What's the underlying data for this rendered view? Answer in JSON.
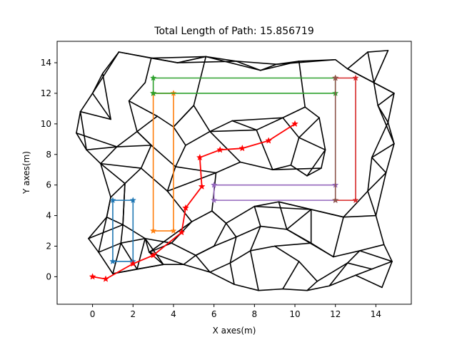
{
  "chart_data": {
    "type": "line",
    "title": "Total Length of Path: 15.856719",
    "xlabel": "X axes(m)",
    "ylabel": "Y axes(m)",
    "xlim": [
      -1.75,
      15.75
    ],
    "ylim": [
      -1.8,
      15.4
    ],
    "x_ticks": [
      0,
      2,
      4,
      6,
      8,
      10,
      12,
      14
    ],
    "y_ticks": [
      0,
      2,
      4,
      6,
      8,
      10,
      12,
      14
    ],
    "grid": false,
    "colors": {
      "network": "#000000",
      "path": "#ff0000",
      "blue": "#1f77b4",
      "orange": "#ff7f0e",
      "green": "#2ca02c",
      "red": "#d62728",
      "purple": "#9467bd",
      "brown": "#8c564b"
    },
    "obstacles": [
      {
        "name": "blue",
        "color": "#1f77b4",
        "x": [
          1,
          2,
          2,
          1,
          1
        ],
        "y": [
          1,
          1,
          5,
          5,
          1
        ]
      },
      {
        "name": "orange",
        "color": "#ff7f0e",
        "x": [
          3,
          4,
          4,
          3,
          3
        ],
        "y": [
          3,
          3,
          12,
          12,
          3
        ]
      },
      {
        "name": "green",
        "color": "#2ca02c",
        "x": [
          3,
          12,
          12,
          3,
          3
        ],
        "y": [
          12,
          12,
          13,
          13,
          12
        ]
      },
      {
        "name": "red",
        "color": "#d62728",
        "x": [
          12,
          13,
          13,
          12
        ],
        "y": [
          13,
          13,
          5,
          5
        ]
      },
      {
        "name": "purple",
        "color": "#9467bd",
        "x": [
          12,
          6,
          6,
          12
        ],
        "y": [
          5,
          5,
          6,
          6
        ]
      },
      {
        "name": "brown",
        "color": "#8c564b",
        "x": [
          12,
          12
        ],
        "y": [
          5,
          13
        ]
      }
    ],
    "path": {
      "x": [
        0,
        0.65,
        2,
        3,
        4.4,
        4.6,
        5.4,
        5.3,
        6.3,
        7.4,
        8.7,
        10
      ],
      "y": [
        0,
        -0.15,
        0.85,
        1.4,
        2.9,
        4.5,
        5.9,
        7.8,
        8.3,
        8.4,
        8.9,
        10
      ]
    },
    "network_nodes": [
      [
        1.0,
        0.2
      ],
      [
        2.2,
        0.5
      ],
      [
        3.5,
        0.8
      ],
      [
        0.3,
        1.6
      ],
      [
        1.4,
        2.2
      ],
      [
        2.6,
        2.5
      ],
      [
        -0.2,
        2.5
      ],
      [
        0.7,
        3.9
      ],
      [
        1.5,
        3.4
      ],
      [
        2.8,
        1.6
      ],
      [
        4.5,
        0.8
      ],
      [
        5.8,
        0.3
      ],
      [
        7.0,
        -0.5
      ],
      [
        8.2,
        -0.9
      ],
      [
        9.4,
        -0.8
      ],
      [
        10.6,
        -0.9
      ],
      [
        11.7,
        -0.6
      ],
      [
        13.0,
        0.1
      ],
      [
        14.3,
        -0.7
      ],
      [
        14.8,
        1.0
      ],
      [
        14.4,
        2.1
      ],
      [
        13.2,
        1.7
      ],
      [
        11.9,
        1.3
      ],
      [
        10.8,
        2.2
      ],
      [
        9.6,
        3.1
      ],
      [
        8.3,
        3.3
      ],
      [
        7.1,
        2.6
      ],
      [
        6.0,
        2.0
      ],
      [
        6.6,
        3.5
      ],
      [
        8.0,
        4.6
      ],
      [
        9.2,
        4.9
      ],
      [
        10.8,
        4.4
      ],
      [
        12.4,
        3.9
      ],
      [
        14.0,
        4.0
      ],
      [
        13.6,
        5.6
      ],
      [
        14.5,
        6.8
      ],
      [
        13.8,
        7.8
      ],
      [
        14.9,
        8.7
      ],
      [
        14.6,
        10.1
      ],
      [
        14.1,
        11.2
      ],
      [
        14.9,
        12.0
      ],
      [
        13.9,
        12.7
      ],
      [
        12.6,
        13.6
      ],
      [
        13.6,
        14.7
      ],
      [
        14.6,
        14.8
      ],
      [
        12.0,
        14.2
      ],
      [
        10.2,
        14.1
      ],
      [
        9.1,
        13.9
      ],
      [
        8.3,
        13.5
      ],
      [
        7.1,
        14.1
      ],
      [
        5.6,
        14.4
      ],
      [
        4.2,
        14.0
      ],
      [
        2.9,
        14.3
      ],
      [
        1.3,
        14.7
      ],
      [
        0.5,
        13.3
      ],
      [
        0.0,
        12.0
      ],
      [
        -0.6,
        10.8
      ],
      [
        -0.8,
        9.4
      ],
      [
        -0.3,
        8.3
      ],
      [
        0.4,
        7.4
      ],
      [
        1.2,
        8.5
      ],
      [
        2.2,
        9.5
      ],
      [
        2.9,
        8.6
      ],
      [
        2.4,
        7.1
      ],
      [
        1.6,
        6.1
      ],
      [
        0.9,
        5.2
      ],
      [
        3.7,
        5.6
      ],
      [
        4.1,
        7.2
      ],
      [
        4.6,
        8.6
      ],
      [
        4.0,
        9.8
      ],
      [
        5.0,
        11.2
      ],
      [
        5.8,
        9.5
      ],
      [
        6.9,
        10.2
      ],
      [
        8.1,
        9.6
      ],
      [
        9.4,
        10.4
      ],
      [
        10.5,
        11.1
      ],
      [
        11.2,
        10.4
      ],
      [
        10.2,
        9.1
      ],
      [
        9.8,
        7.3
      ],
      [
        10.6,
        6.6
      ],
      [
        11.3,
        7.1
      ],
      [
        11.5,
        8.3
      ],
      [
        8.9,
        7.0
      ],
      [
        7.3,
        7.5
      ],
      [
        6.1,
        6.8
      ],
      [
        5.9,
        4.3
      ],
      [
        4.9,
        3.6
      ],
      [
        3.9,
        2.2
      ],
      [
        5.1,
        1.4
      ],
      [
        6.8,
        0.9
      ],
      [
        7.8,
        1.7
      ],
      [
        9.0,
        2.0
      ],
      [
        10.2,
        1.0
      ],
      [
        11.1,
        -0.3
      ],
      [
        12.6,
        0.9
      ],
      [
        13.8,
        0.5
      ],
      [
        3.2,
        10.5
      ],
      [
        1.8,
        11.5
      ],
      [
        2.6,
        12.7
      ],
      [
        0.9,
        10.3
      ]
    ],
    "network_edges": [
      [
        0,
        1
      ],
      [
        0,
        3
      ],
      [
        0,
        4
      ],
      [
        1,
        2
      ],
      [
        1,
        4
      ],
      [
        1,
        5
      ],
      [
        2,
        5
      ],
      [
        2,
        9
      ],
      [
        2,
        10
      ],
      [
        3,
        4
      ],
      [
        3,
        6
      ],
      [
        4,
        5
      ],
      [
        4,
        8
      ],
      [
        5,
        8
      ],
      [
        5,
        9
      ],
      [
        6,
        7
      ],
      [
        6,
        8
      ],
      [
        7,
        8
      ],
      [
        7,
        65
      ],
      [
        8,
        64
      ],
      [
        9,
        10
      ],
      [
        9,
        87
      ],
      [
        10,
        11
      ],
      [
        10,
        88
      ],
      [
        11,
        12
      ],
      [
        11,
        89
      ],
      [
        12,
        13
      ],
      [
        12,
        89
      ],
      [
        13,
        14
      ],
      [
        13,
        90
      ],
      [
        14,
        15
      ],
      [
        14,
        92
      ],
      [
        15,
        16
      ],
      [
        15,
        93
      ],
      [
        16,
        17
      ],
      [
        16,
        94
      ],
      [
        17,
        18
      ],
      [
        17,
        95
      ],
      [
        18,
        19
      ],
      [
        19,
        20
      ],
      [
        19,
        21
      ],
      [
        20,
        21
      ],
      [
        20,
        33
      ],
      [
        21,
        22
      ],
      [
        21,
        94
      ],
      [
        22,
        23
      ],
      [
        22,
        32
      ],
      [
        23,
        24
      ],
      [
        23,
        91
      ],
      [
        24,
        25
      ],
      [
        24,
        30
      ],
      [
        25,
        26
      ],
      [
        25,
        29
      ],
      [
        26,
        27
      ],
      [
        26,
        28
      ],
      [
        27,
        28
      ],
      [
        27,
        88
      ],
      [
        28,
        29
      ],
      [
        28,
        85
      ],
      [
        29,
        30
      ],
      [
        30,
        31
      ],
      [
        31,
        32
      ],
      [
        32,
        33
      ],
      [
        33,
        34
      ],
      [
        34,
        35
      ],
      [
        35,
        36
      ],
      [
        36,
        37
      ],
      [
        37,
        38
      ],
      [
        38,
        39
      ],
      [
        39,
        40
      ],
      [
        40,
        41
      ],
      [
        41,
        42
      ],
      [
        41,
        43
      ],
      [
        42,
        43
      ],
      [
        43,
        44
      ],
      [
        42,
        45
      ],
      [
        45,
        46
      ],
      [
        46,
        47
      ],
      [
        47,
        48
      ],
      [
        48,
        49
      ],
      [
        49,
        50
      ],
      [
        50,
        51
      ],
      [
        51,
        52
      ],
      [
        52,
        53
      ],
      [
        53,
        54
      ],
      [
        54,
        55
      ],
      [
        55,
        56
      ],
      [
        56,
        57
      ],
      [
        57,
        58
      ],
      [
        58,
        59
      ],
      [
        59,
        60
      ],
      [
        60,
        61
      ],
      [
        61,
        62
      ],
      [
        62,
        63
      ],
      [
        63,
        64
      ],
      [
        64,
        65
      ],
      [
        65,
        7
      ],
      [
        66,
        67
      ],
      [
        67,
        68
      ],
      [
        68,
        69
      ],
      [
        69,
        70
      ],
      [
        70,
        71
      ],
      [
        71,
        72
      ],
      [
        72,
        73
      ],
      [
        73,
        74
      ],
      [
        74,
        75
      ],
      [
        75,
        76
      ],
      [
        76,
        77
      ],
      [
        77,
        78
      ],
      [
        78,
        79
      ],
      [
        79,
        80
      ],
      [
        80,
        81
      ],
      [
        81,
        77
      ],
      [
        78,
        82
      ],
      [
        82,
        83
      ],
      [
        83,
        84
      ],
      [
        84,
        85
      ],
      [
        85,
        86
      ],
      [
        86,
        87
      ],
      [
        87,
        88
      ],
      [
        86,
        9
      ],
      [
        66,
        84
      ],
      [
        66,
        86
      ],
      [
        67,
        84
      ],
      [
        68,
        71
      ],
      [
        71,
        73
      ],
      [
        73,
        82
      ],
      [
        76,
        81
      ],
      [
        79,
        81
      ],
      [
        24,
        31
      ],
      [
        29,
        31
      ],
      [
        33,
        35
      ],
      [
        34,
        36
      ],
      [
        36,
        38
      ],
      [
        38,
        40
      ],
      [
        39,
        41
      ],
      [
        45,
        47
      ],
      [
        46,
        48
      ],
      [
        49,
        51
      ],
      [
        50,
        52
      ],
      [
        53,
        55
      ],
      [
        54,
        99
      ],
      [
        56,
        99
      ],
      [
        57,
        60
      ],
      [
        58,
        60
      ],
      [
        59,
        63
      ],
      [
        60,
        62
      ],
      [
        61,
        96
      ],
      [
        61,
        97
      ],
      [
        96,
        97
      ],
      [
        97,
        98
      ],
      [
        98,
        52
      ],
      [
        96,
        69
      ],
      [
        62,
        67
      ],
      [
        63,
        66
      ],
      [
        64,
        8
      ],
      [
        85,
        28
      ],
      [
        88,
        27
      ],
      [
        89,
        90
      ],
      [
        90,
        91
      ],
      [
        91,
        92
      ],
      [
        92,
        93
      ],
      [
        93,
        94
      ],
      [
        94,
        95
      ],
      [
        95,
        19
      ],
      [
        0,
        2
      ],
      [
        3,
        7
      ],
      [
        22,
        24
      ],
      [
        23,
        31
      ],
      [
        25,
        90
      ],
      [
        26,
        89
      ],
      [
        30,
        32
      ],
      [
        32,
        34
      ],
      [
        35,
        37
      ],
      [
        37,
        39
      ],
      [
        40,
        42
      ],
      [
        44,
        41
      ],
      [
        47,
        49
      ],
      [
        48,
        50
      ],
      [
        51,
        53
      ],
      [
        55,
        99
      ],
      [
        56,
        58
      ],
      [
        59,
        64
      ],
      [
        62,
        61
      ],
      [
        65,
        59
      ],
      [
        69,
        70
      ],
      [
        70,
        50
      ],
      [
        72,
        74
      ],
      [
        74,
        77
      ],
      [
        75,
        46
      ],
      [
        80,
        82
      ],
      [
        83,
        71
      ],
      [
        87,
        5
      ],
      [
        11,
        88
      ]
    ]
  }
}
